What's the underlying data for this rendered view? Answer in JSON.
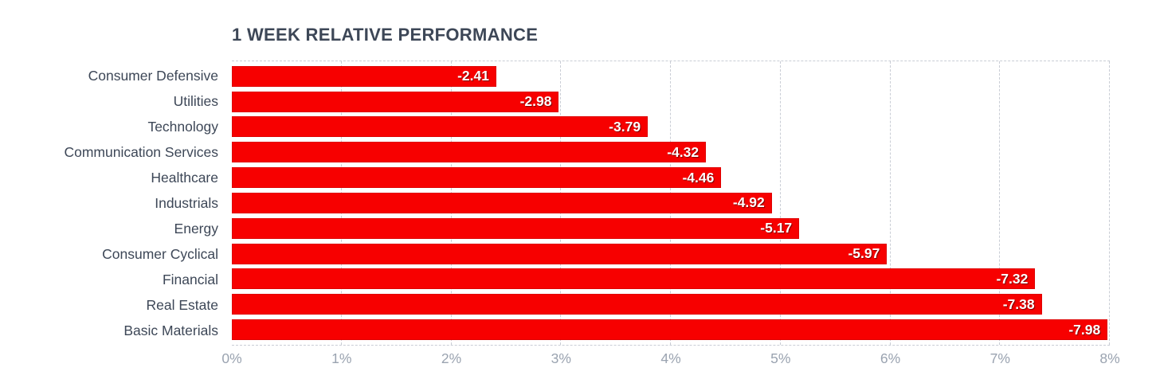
{
  "title": "1 WEEK RELATIVE PERFORMANCE",
  "chart_data": {
    "type": "bar",
    "orientation": "horizontal",
    "title": "1 WEEK RELATIVE PERFORMANCE",
    "categories": [
      "Consumer Defensive",
      "Utilities",
      "Technology",
      "Communication Services",
      "Healthcare",
      "Industrials",
      "Energy",
      "Consumer Cyclical",
      "Financial",
      "Real Estate",
      "Basic Materials"
    ],
    "values": [
      -2.41,
      -2.98,
      -3.79,
      -4.32,
      -4.46,
      -4.92,
      -5.17,
      -5.97,
      -7.32,
      -7.38,
      -7.98
    ],
    "value_labels": [
      "-2.41",
      "-2.98",
      "-3.79",
      "-4.32",
      "-4.46",
      "-4.92",
      "-5.17",
      "-5.97",
      "-7.32",
      "-7.38",
      "-7.98"
    ],
    "x_ticks": [
      "0%",
      "1%",
      "2%",
      "3%",
      "4%",
      "5%",
      "6%",
      "7%",
      "8%"
    ],
    "x_tick_values": [
      0,
      1,
      2,
      3,
      4,
      5,
      6,
      7,
      8
    ],
    "xlim": [
      0,
      8
    ],
    "bar_length_rule": "absolute value of percentage",
    "grid": "vertical dashed gridlines at each 1%, dashed top and bottom plot borders",
    "legend": "none",
    "colors": {
      "bar_fill": "#f70000",
      "bar_border": "#de0000",
      "value_text": "#ffffff",
      "category_text": "#3d4757",
      "title_text": "#3d4757",
      "tick_text": "#9aa3b0",
      "grid_line": "#c9cdd5",
      "background": "#ffffff"
    }
  }
}
